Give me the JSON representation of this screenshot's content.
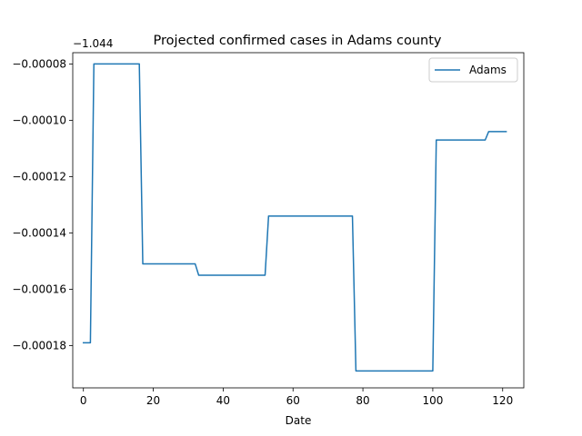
{
  "chart_data": {
    "type": "line",
    "title": "Projected confirmed cases in Adams county",
    "xlabel": "Date",
    "ylabel": "",
    "y_offset_label": "−1.044",
    "xlim": [
      -3.05,
      126.05
    ],
    "ylim": [
      -0.000195,
      -7.6e-05
    ],
    "x_ticks": [
      0,
      20,
      40,
      60,
      80,
      100,
      120
    ],
    "y_ticks": [
      -0.00018,
      -0.00016,
      -0.00014,
      -0.00012,
      -0.0001,
      -8e-05
    ],
    "y_tick_labels": [
      "−0.00018",
      "−0.00016",
      "−0.00014",
      "−0.00012",
      "−0.00010",
      "−0.00008"
    ],
    "legend_position": "top-right",
    "grid": false,
    "series": [
      {
        "name": "Adams",
        "color": "#1f77b4",
        "x": [
          0,
          2,
          3,
          16,
          17,
          32,
          33,
          52,
          53,
          77,
          78,
          100,
          101,
          115,
          116,
          121
        ],
        "y": [
          -0.000179,
          -0.000179,
          -8e-05,
          -8e-05,
          -0.000151,
          -0.000151,
          -0.000155,
          -0.000155,
          -0.000134,
          -0.000134,
          -0.000189,
          -0.000189,
          -0.000107,
          -0.000107,
          -0.000104,
          -0.000104
        ]
      }
    ]
  }
}
